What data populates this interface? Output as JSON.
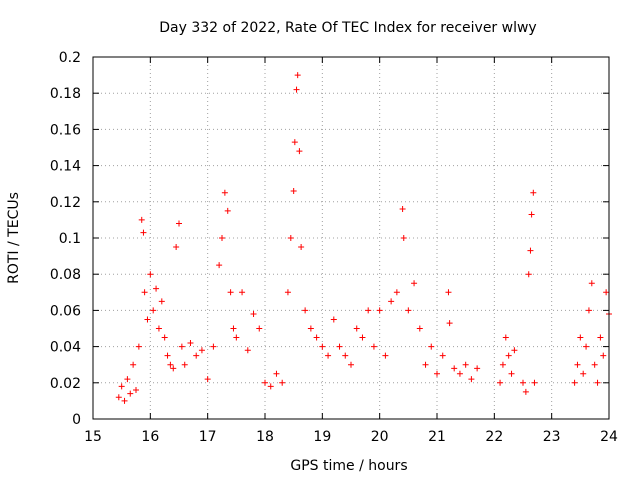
{
  "chart_data": {
    "type": "scatter",
    "title": "Day 332 of 2022, Rate Of TEC Index for receiver wlwy",
    "xlabel": "GPS time / hours",
    "ylabel": "ROTI / TECUs",
    "xlim": [
      15,
      24
    ],
    "ylim": [
      0,
      0.2
    ],
    "x_ticks": [
      "15",
      "16",
      "17",
      "18",
      "19",
      "20",
      "21",
      "22",
      "23",
      "24"
    ],
    "y_ticks": [
      "0",
      "0.02",
      "0.04",
      "0.06",
      "0.08",
      "0.1",
      "0.12",
      "0.14",
      "0.16",
      "0.18",
      "0.2"
    ],
    "grid": true,
    "marker": "plus",
    "series_color": "#ff0000",
    "series": [
      {
        "points": [
          [
            15.45,
            0.012
          ],
          [
            15.5,
            0.018
          ],
          [
            15.55,
            0.01
          ],
          [
            15.6,
            0.022
          ],
          [
            15.65,
            0.014
          ],
          [
            15.7,
            0.03
          ],
          [
            15.75,
            0.016
          ],
          [
            15.8,
            0.04
          ],
          [
            15.85,
            0.11
          ],
          [
            15.88,
            0.103
          ],
          [
            15.9,
            0.07
          ],
          [
            15.95,
            0.055
          ],
          [
            16.0,
            0.08
          ],
          [
            16.05,
            0.06
          ],
          [
            16.1,
            0.072
          ],
          [
            16.15,
            0.05
          ],
          [
            16.2,
            0.065
          ],
          [
            16.25,
            0.045
          ],
          [
            16.3,
            0.035
          ],
          [
            16.35,
            0.03
          ],
          [
            16.4,
            0.028
          ],
          [
            16.45,
            0.095
          ],
          [
            16.5,
            0.108
          ],
          [
            16.55,
            0.04
          ],
          [
            16.6,
            0.03
          ],
          [
            16.7,
            0.042
          ],
          [
            16.8,
            0.035
          ],
          [
            16.9,
            0.038
          ],
          [
            17.0,
            0.022
          ],
          [
            17.1,
            0.04
          ],
          [
            17.2,
            0.085
          ],
          [
            17.25,
            0.1
          ],
          [
            17.3,
            0.125
          ],
          [
            17.35,
            0.115
          ],
          [
            17.4,
            0.07
          ],
          [
            17.45,
            0.05
          ],
          [
            17.5,
            0.045
          ],
          [
            17.6,
            0.07
          ],
          [
            17.7,
            0.038
          ],
          [
            17.8,
            0.058
          ],
          [
            17.9,
            0.05
          ],
          [
            18.0,
            0.02
          ],
          [
            18.1,
            0.018
          ],
          [
            18.2,
            0.025
          ],
          [
            18.3,
            0.02
          ],
          [
            18.4,
            0.07
          ],
          [
            18.45,
            0.1
          ],
          [
            18.5,
            0.126
          ],
          [
            18.52,
            0.153
          ],
          [
            18.55,
            0.182
          ],
          [
            18.57,
            0.19
          ],
          [
            18.6,
            0.148
          ],
          [
            18.63,
            0.095
          ],
          [
            18.7,
            0.06
          ],
          [
            18.8,
            0.05
          ],
          [
            18.9,
            0.045
          ],
          [
            19.0,
            0.04
          ],
          [
            19.1,
            0.035
          ],
          [
            19.2,
            0.055
          ],
          [
            19.3,
            0.04
          ],
          [
            19.4,
            0.035
          ],
          [
            19.5,
            0.03
          ],
          [
            19.6,
            0.05
          ],
          [
            19.7,
            0.045
          ],
          [
            19.8,
            0.06
          ],
          [
            19.9,
            0.04
          ],
          [
            20.0,
            0.06
          ],
          [
            20.1,
            0.035
          ],
          [
            20.2,
            0.065
          ],
          [
            20.3,
            0.07
          ],
          [
            20.4,
            0.116
          ],
          [
            20.42,
            0.1
          ],
          [
            20.5,
            0.06
          ],
          [
            20.6,
            0.075
          ],
          [
            20.7,
            0.05
          ],
          [
            20.8,
            0.03
          ],
          [
            20.9,
            0.04
          ],
          [
            21.0,
            0.025
          ],
          [
            21.1,
            0.035
          ],
          [
            21.2,
            0.07
          ],
          [
            21.22,
            0.053
          ],
          [
            21.3,
            0.028
          ],
          [
            21.4,
            0.025
          ],
          [
            21.5,
            0.03
          ],
          [
            21.6,
            0.022
          ],
          [
            21.7,
            0.028
          ],
          [
            22.1,
            0.02
          ],
          [
            22.15,
            0.03
          ],
          [
            22.2,
            0.045
          ],
          [
            22.25,
            0.035
          ],
          [
            22.3,
            0.025
          ],
          [
            22.35,
            0.038
          ],
          [
            22.5,
            0.02
          ],
          [
            22.55,
            0.015
          ],
          [
            22.6,
            0.08
          ],
          [
            22.63,
            0.093
          ],
          [
            22.65,
            0.113
          ],
          [
            22.68,
            0.125
          ],
          [
            22.7,
            0.02
          ],
          [
            23.4,
            0.02
          ],
          [
            23.45,
            0.03
          ],
          [
            23.5,
            0.045
          ],
          [
            23.55,
            0.025
          ],
          [
            23.6,
            0.04
          ],
          [
            23.65,
            0.06
          ],
          [
            23.7,
            0.075
          ],
          [
            23.75,
            0.03
          ],
          [
            23.8,
            0.02
          ],
          [
            23.85,
            0.045
          ],
          [
            23.9,
            0.035
          ],
          [
            23.95,
            0.07
          ],
          [
            24.0,
            0.058
          ]
        ]
      }
    ]
  }
}
